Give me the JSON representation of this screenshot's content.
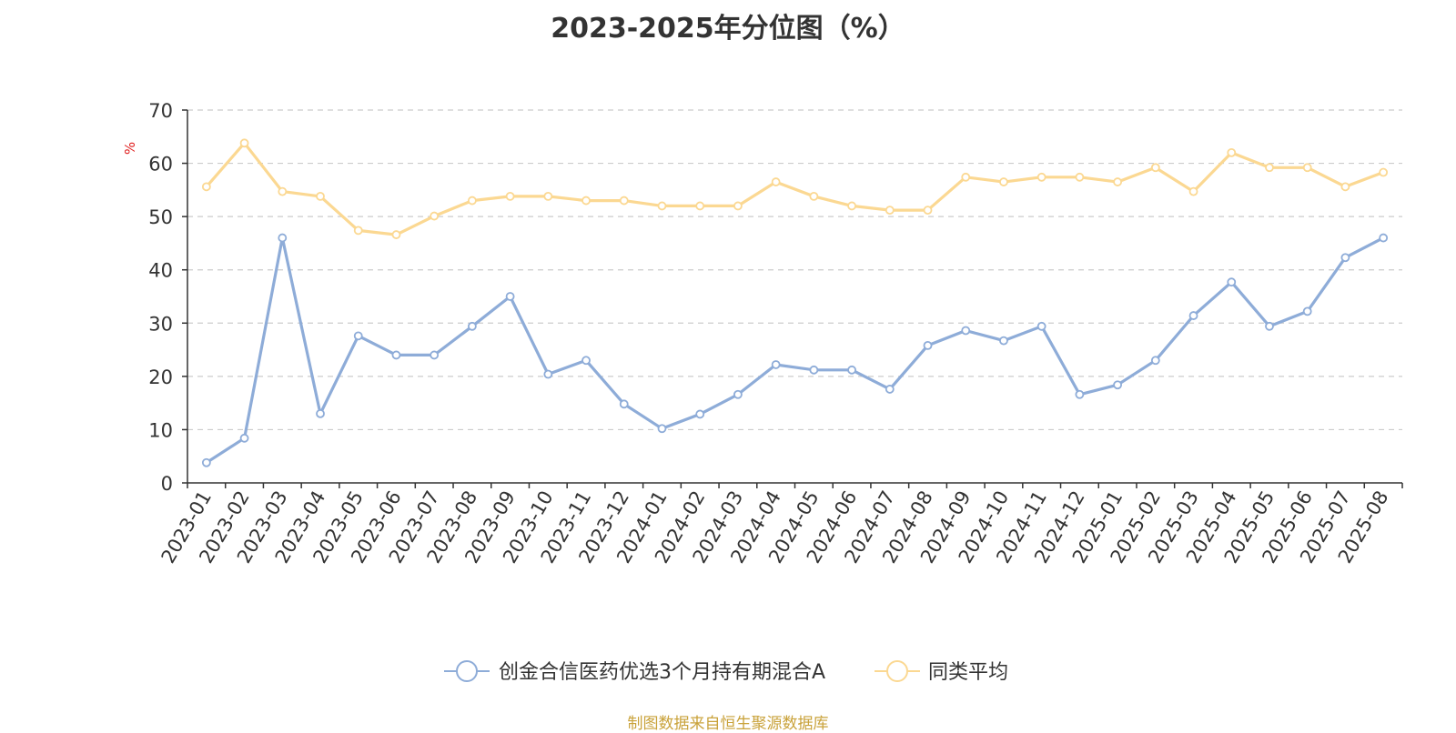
{
  "chart_data": {
    "type": "line",
    "title": "2023-2025年分位图（%）",
    "ylabel": "%",
    "ylim": [
      0,
      70
    ],
    "yticks": [
      0,
      10,
      20,
      30,
      40,
      50,
      60,
      70
    ],
    "grid": true,
    "legend_position": "bottom-center",
    "categories": [
      "2023-01",
      "2023-02",
      "2023-03",
      "2023-04",
      "2023-05",
      "2023-06",
      "2023-07",
      "2023-08",
      "2023-09",
      "2023-10",
      "2023-11",
      "2023-12",
      "2024-01",
      "2024-02",
      "2024-03",
      "2024-04",
      "2024-05",
      "2024-06",
      "2024-07",
      "2024-08",
      "2024-09",
      "2024-10",
      "2024-11",
      "2024-12",
      "2025-01",
      "2025-02",
      "2025-03",
      "2025-04",
      "2025-05",
      "2025-06",
      "2025-07",
      "2025-08"
    ],
    "series": [
      {
        "name": "创金合信医药优选3个月持有期混合A",
        "color": "#8eacd8",
        "values": [
          3.8,
          8.4,
          46.0,
          13.0,
          27.6,
          24.0,
          24.0,
          29.4,
          35.0,
          20.4,
          23.0,
          14.8,
          10.2,
          12.9,
          16.6,
          22.2,
          21.2,
          21.2,
          17.6,
          25.8,
          28.6,
          26.7,
          29.4,
          16.6,
          18.4,
          23.0,
          31.4,
          37.7,
          29.4,
          32.2,
          42.3,
          46.0
        ]
      },
      {
        "name": "同类平均",
        "color": "#fbd892",
        "values": [
          55.6,
          63.8,
          54.7,
          53.8,
          47.4,
          46.6,
          50.1,
          53.0,
          53.8,
          53.8,
          53.0,
          53.0,
          52.0,
          52.0,
          52.0,
          56.5,
          53.8,
          52.0,
          51.2,
          51.2,
          57.4,
          56.5,
          57.4,
          57.4,
          56.5,
          59.2,
          54.7,
          62.0,
          59.2,
          59.2,
          55.6,
          58.3
        ]
      }
    ],
    "source": "制图数据来自恒生聚源数据库"
  }
}
